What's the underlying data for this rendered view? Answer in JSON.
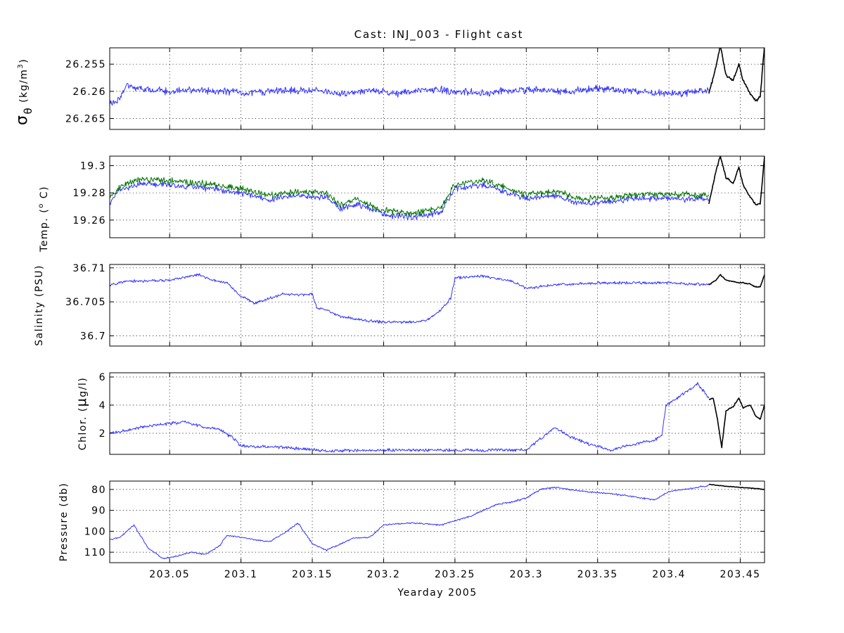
{
  "figure": {
    "title": "Cast: INJ_003 - Flight cast",
    "xlabel": "Yearday 2005"
  },
  "colors": {
    "primary": "#3333ff",
    "secondary": "#007700",
    "tail": "#000000"
  },
  "chart_data": [
    {
      "type": "line",
      "ylabel_main": "σ",
      "ylabel_sub": "θ",
      "ylabel_rest": " (kg/m",
      "ylabel_sup": "3",
      "ylabel_end": ")",
      "xlim": [
        203.008,
        203.467
      ],
      "ylim": [
        26.252,
        26.267
      ],
      "y_reversed": true,
      "xticks": [
        203.05,
        203.1,
        203.15,
        203.2,
        203.25,
        203.3,
        203.35,
        203.4,
        203.45
      ],
      "yticks": [
        26.255,
        26.26,
        26.265
      ],
      "ytick_labels": [
        "26.255",
        "26.26",
        "26.265"
      ],
      "series": [
        {
          "color": "#3333ff",
          "x": [
            203.008,
            203.012,
            203.02,
            203.03,
            203.05,
            203.07,
            203.09,
            203.11,
            203.13,
            203.15,
            203.17,
            203.19,
            203.21,
            203.23,
            203.25,
            203.27,
            203.29,
            203.31,
            203.33,
            203.35,
            203.37,
            203.39,
            203.41,
            203.428
          ],
          "y": [
            26.262,
            26.262,
            26.259,
            26.2595,
            26.26,
            26.2598,
            26.26,
            26.2603,
            26.2598,
            26.2598,
            26.2605,
            26.2598,
            26.2605,
            26.2595,
            26.26,
            26.2603,
            26.2598,
            26.2598,
            26.26,
            26.2595,
            26.2598,
            26.2603,
            26.2603,
            26.2598
          ]
        },
        {
          "color": "#000000",
          "x": [
            203.428,
            203.433,
            203.436,
            203.44,
            203.445,
            203.449,
            203.452,
            203.457,
            203.461,
            203.464,
            203.467
          ],
          "y": [
            26.2605,
            26.2555,
            26.2515,
            26.257,
            26.258,
            26.255,
            26.258,
            26.2605,
            26.2618,
            26.261,
            26.2515
          ]
        }
      ]
    },
    {
      "type": "line",
      "ylabel": "Temp. (",
      "ylabel_sup": "o",
      "ylabel_end": " C)",
      "xlim": [
        203.008,
        203.467
      ],
      "ylim": [
        19.247,
        19.307
      ],
      "y_reversed": false,
      "xticks": [
        203.05,
        203.1,
        203.15,
        203.2,
        203.25,
        203.3,
        203.35,
        203.4,
        203.45
      ],
      "yticks": [
        19.26,
        19.28,
        19.3
      ],
      "ytick_labels": [
        "19.26",
        "19.28",
        "19.3"
      ],
      "series": [
        {
          "color": "#3333ff",
          "x": [
            203.008,
            203.015,
            203.03,
            203.05,
            203.08,
            203.1,
            203.12,
            203.14,
            203.16,
            203.17,
            203.18,
            203.2,
            203.22,
            203.24,
            203.25,
            203.27,
            203.3,
            203.32,
            203.34,
            203.36,
            203.38,
            203.4,
            203.428
          ],
          "y": [
            19.273,
            19.282,
            19.287,
            19.286,
            19.283,
            19.28,
            19.275,
            19.278,
            19.277,
            19.268,
            19.272,
            19.264,
            19.262,
            19.266,
            19.283,
            19.286,
            19.276,
            19.278,
            19.272,
            19.274,
            19.276,
            19.276,
            19.275
          ]
        },
        {
          "color": "#007700",
          "x": [
            203.008,
            203.015,
            203.03,
            203.05,
            203.08,
            203.1,
            203.12,
            203.14,
            203.16,
            203.17,
            203.18,
            203.2,
            203.22,
            203.24,
            203.25,
            203.27,
            203.3,
            203.32,
            203.34,
            203.36,
            203.38,
            203.4,
            203.428
          ],
          "y": [
            19.276,
            19.285,
            19.29,
            19.289,
            19.286,
            19.283,
            19.278,
            19.281,
            19.28,
            19.271,
            19.275,
            19.267,
            19.265,
            19.269,
            19.286,
            19.289,
            19.279,
            19.281,
            19.275,
            19.277,
            19.279,
            19.279,
            19.278
          ]
        },
        {
          "color": "#000000",
          "x": [
            203.428,
            203.433,
            203.436,
            203.44,
            203.445,
            203.449,
            203.452,
            203.457,
            203.461,
            203.464,
            203.467
          ],
          "y": [
            19.272,
            19.296,
            19.307,
            19.291,
            19.287,
            19.299,
            19.286,
            19.277,
            19.271,
            19.272,
            19.307
          ]
        }
      ]
    },
    {
      "type": "line",
      "ylabel": "Salinity (PSU)",
      "xlim": [
        203.008,
        203.467
      ],
      "ylim": [
        36.6985,
        36.7105
      ],
      "y_reversed": false,
      "xticks": [
        203.05,
        203.1,
        203.15,
        203.2,
        203.25,
        203.3,
        203.35,
        203.4,
        203.45
      ],
      "yticks": [
        36.7,
        36.705,
        36.71
      ],
      "ytick_labels": [
        "36.7",
        "36.705",
        "36.71"
      ],
      "series": [
        {
          "color": "#3333ff",
          "x": [
            203.008,
            203.02,
            203.05,
            203.07,
            203.08,
            203.09,
            203.1,
            203.11,
            203.12,
            203.13,
            203.14,
            203.15,
            203.153,
            203.16,
            203.17,
            203.19,
            203.2,
            203.22,
            203.23,
            203.24,
            203.247,
            203.25,
            203.27,
            203.29,
            203.3,
            203.32,
            203.35,
            203.38,
            203.4,
            203.428
          ],
          "y": [
            36.7075,
            36.708,
            36.7082,
            36.709,
            36.7082,
            36.7078,
            36.7058,
            36.7048,
            36.7055,
            36.7062,
            36.706,
            36.7062,
            36.7042,
            36.7038,
            36.7028,
            36.7022,
            36.702,
            36.702,
            36.7022,
            36.7038,
            36.7055,
            36.7085,
            36.7088,
            36.708,
            36.707,
            36.7075,
            36.7078,
            36.7078,
            36.7078,
            36.7075
          ]
        },
        {
          "color": "#000000",
          "x": [
            203.428,
            203.433,
            203.436,
            203.44,
            203.445,
            203.449,
            203.452,
            203.457,
            203.461,
            203.464,
            203.467
          ],
          "y": [
            36.7075,
            36.7082,
            36.709,
            36.7082,
            36.708,
            36.7078,
            36.7078,
            36.7076,
            36.7072,
            36.7072,
            36.709
          ]
        }
      ]
    },
    {
      "type": "line",
      "ylabel_pre": "Chlor. (",
      "ylabel_mu": "μ",
      "ylabel_end": "g/l)",
      "xlim": [
        203.008,
        203.467
      ],
      "ylim": [
        0.5,
        6.3
      ],
      "y_reversed": false,
      "xticks": [
        203.05,
        203.1,
        203.15,
        203.2,
        203.25,
        203.3,
        203.35,
        203.4,
        203.45
      ],
      "yticks": [
        2,
        4,
        6
      ],
      "ytick_labels": [
        "2",
        "4",
        "6"
      ],
      "series": [
        {
          "color": "#3333ff",
          "x": [
            203.008,
            203.02,
            203.04,
            203.06,
            203.075,
            203.085,
            203.095,
            203.1,
            203.13,
            203.16,
            203.2,
            203.25,
            203.3,
            203.31,
            203.32,
            203.33,
            203.345,
            203.36,
            203.37,
            203.39,
            203.395,
            203.398,
            203.41,
            203.42,
            203.428
          ],
          "y": [
            2.0,
            2.2,
            2.6,
            2.8,
            2.4,
            2.3,
            1.6,
            1.1,
            1.0,
            0.75,
            0.8,
            0.8,
            0.8,
            1.6,
            2.4,
            1.8,
            1.2,
            0.8,
            1.1,
            1.5,
            1.9,
            4.0,
            4.8,
            5.5,
            4.5
          ]
        },
        {
          "color": "#000000",
          "x": [
            203.428,
            203.431,
            203.434,
            203.437,
            203.44,
            203.445,
            203.449,
            203.452,
            203.457,
            203.461,
            203.464,
            203.467
          ],
          "y": [
            4.4,
            4.5,
            3.0,
            1.0,
            3.6,
            3.9,
            4.5,
            3.8,
            4.0,
            3.2,
            3.0,
            4.0
          ]
        }
      ]
    },
    {
      "type": "line",
      "ylabel": "Pressure (db)",
      "xlim": [
        203.008,
        203.467
      ],
      "ylim": [
        76,
        115
      ],
      "y_reversed": true,
      "xticks": [
        203.05,
        203.1,
        203.15,
        203.2,
        203.25,
        203.3,
        203.35,
        203.4,
        203.45
      ],
      "xtick_labels": [
        "203.05",
        "203.1",
        "203.15",
        "203.2",
        "203.25",
        "203.3",
        "203.35",
        "203.4",
        "203.45"
      ],
      "yticks": [
        80,
        90,
        100,
        110
      ],
      "ytick_labels": [
        "80",
        "90",
        "100",
        "110"
      ],
      "series": [
        {
          "color": "#3333ff",
          "x": [
            203.008,
            203.015,
            203.025,
            203.035,
            203.045,
            203.055,
            203.065,
            203.075,
            203.085,
            203.09,
            203.1,
            203.12,
            203.13,
            203.14,
            203.15,
            203.16,
            203.17,
            203.18,
            203.19,
            203.2,
            203.22,
            203.24,
            203.26,
            203.27,
            203.28,
            203.29,
            203.3,
            203.31,
            203.32,
            203.34,
            203.36,
            203.38,
            203.39,
            203.4,
            203.42,
            203.428
          ],
          "y": [
            104,
            103,
            97,
            108,
            113,
            112,
            110,
            111,
            107,
            102,
            103,
            105,
            101,
            96,
            106,
            109,
            106,
            103,
            103,
            97,
            96,
            97,
            93,
            90,
            87,
            86,
            84,
            80,
            79,
            81,
            82,
            84,
            85,
            81,
            79,
            78
          ]
        },
        {
          "color": "#000000",
          "x": [
            203.428,
            203.44,
            203.45,
            203.46,
            203.467
          ],
          "y": [
            77.5,
            78.5,
            79,
            79.5,
            80
          ]
        }
      ]
    }
  ]
}
